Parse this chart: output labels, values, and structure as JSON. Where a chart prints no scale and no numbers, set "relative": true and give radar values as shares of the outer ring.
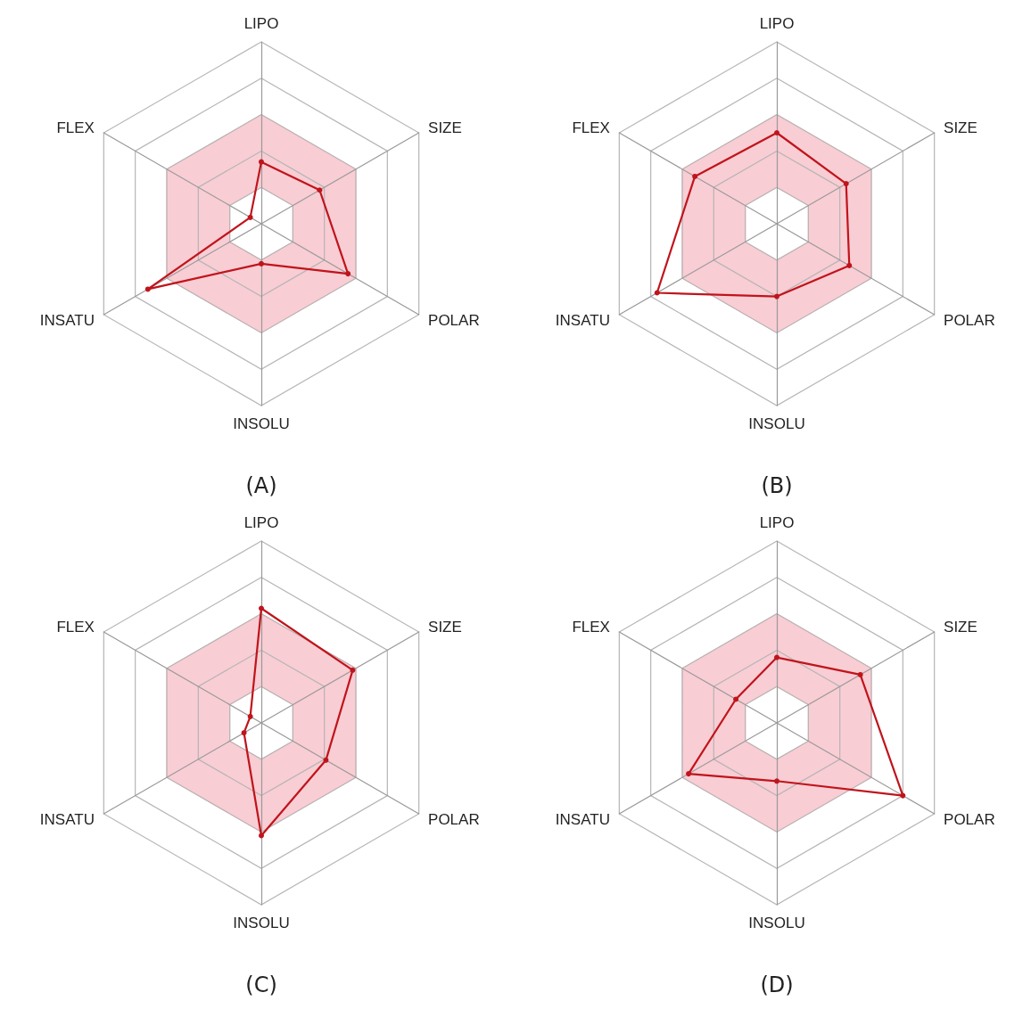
{
  "chart_data": [
    {
      "type": "radar",
      "title": "(A)",
      "categories": [
        "LIPO",
        "SIZE",
        "POLAR",
        "INSOLU",
        "INSATU",
        "FLEX"
      ],
      "relative": true,
      "grid": true,
      "marker": "circle",
      "series": [
        {
          "color": "#c0141c",
          "values": [
            0.34,
            0.37,
            0.55,
            0.22,
            0.72,
            0.07
          ]
        }
      ]
    },
    {
      "type": "radar",
      "title": "(B)",
      "categories": [
        "LIPO",
        "SIZE",
        "POLAR",
        "INSOLU",
        "INSATU",
        "FLEX"
      ],
      "relative": true,
      "grid": true,
      "marker": "circle",
      "series": [
        {
          "color": "#c0141c",
          "values": [
            0.5,
            0.44,
            0.46,
            0.4,
            0.76,
            0.52
          ]
        }
      ]
    },
    {
      "type": "radar",
      "title": "(C)",
      "categories": [
        "LIPO",
        "SIZE",
        "POLAR",
        "INSOLU",
        "INSATU",
        "FLEX"
      ],
      "relative": true,
      "grid": true,
      "marker": "circle",
      "series": [
        {
          "color": "#c0141c",
          "values": [
            0.63,
            0.58,
            0.41,
            0.62,
            0.11,
            0.07
          ]
        }
      ]
    },
    {
      "type": "radar",
      "title": "(D)",
      "categories": [
        "LIPO",
        "SIZE",
        "POLAR",
        "INSOLU",
        "INSATU",
        "FLEX"
      ],
      "relative": true,
      "grid": true,
      "marker": "circle",
      "series": [
        {
          "color": "#c0141c",
          "values": [
            0.36,
            0.53,
            0.8,
            0.32,
            0.56,
            0.26
          ]
        }
      ]
    }
  ]
}
